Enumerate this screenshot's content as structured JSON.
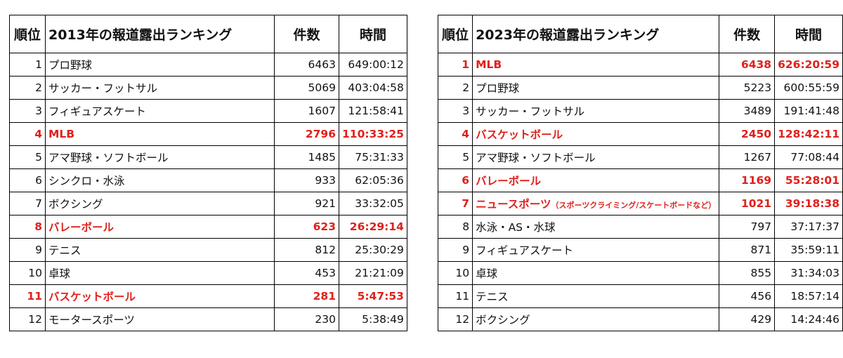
{
  "headers": {
    "rank": "順位",
    "count": "件数",
    "time": "時間"
  },
  "tables": [
    {
      "title": "2013年の報道露出ランキング",
      "rows": [
        {
          "rank": "1",
          "name": "プロ野球",
          "count": "6463",
          "time": "649:00:12",
          "highlight": false
        },
        {
          "rank": "2",
          "name": "サッカー・フットサル",
          "count": "5069",
          "time": "403:04:58",
          "highlight": false
        },
        {
          "rank": "3",
          "name": "フィギュアスケート",
          "count": "1607",
          "time": "121:58:41",
          "highlight": false
        },
        {
          "rank": "4",
          "name": "MLB",
          "count": "2796",
          "time": "110:33:25",
          "highlight": true
        },
        {
          "rank": "5",
          "name": "アマ野球・ソフトボール",
          "count": "1485",
          "time": "75:31:33",
          "highlight": false
        },
        {
          "rank": "6",
          "name": "シンクロ・水泳",
          "count": "933",
          "time": "62:05:36",
          "highlight": false
        },
        {
          "rank": "7",
          "name": "ボクシング",
          "count": "921",
          "time": "33:32:05",
          "highlight": false
        },
        {
          "rank": "8",
          "name": "バレーボール",
          "count": "623",
          "time": "26:29:14",
          "highlight": true
        },
        {
          "rank": "9",
          "name": "テニス",
          "count": "812",
          "time": "25:30:29",
          "highlight": false
        },
        {
          "rank": "10",
          "name": "卓球",
          "count": "453",
          "time": "21:21:09",
          "highlight": false
        },
        {
          "rank": "11",
          "name": "バスケットボール",
          "count": "281",
          "time": "5:47:53",
          "highlight": true
        },
        {
          "rank": "12",
          "name": "モータースポーツ",
          "count": "230",
          "time": "5:38:49",
          "highlight": false
        }
      ]
    },
    {
      "title": "2023年の報道露出ランキング",
      "rows": [
        {
          "rank": "1",
          "name": "MLB",
          "count": "6438",
          "time": "626:20:59",
          "highlight": true
        },
        {
          "rank": "2",
          "name": "プロ野球",
          "count": "5223",
          "time": "600:55:59",
          "highlight": false
        },
        {
          "rank": "3",
          "name": "サッカー・フットサル",
          "count": "3489",
          "time": "191:41:48",
          "highlight": false
        },
        {
          "rank": "4",
          "name": "バスケットボール",
          "count": "2450",
          "time": "128:42:11",
          "highlight": true
        },
        {
          "rank": "5",
          "name": "アマ野球・ソフトボール",
          "count": "1267",
          "time": "77:08:44",
          "highlight": false
        },
        {
          "rank": "6",
          "name": "バレーボール",
          "count": "1169",
          "time": "55:28:01",
          "highlight": true
        },
        {
          "rank": "7",
          "name": "ニュースポーツ",
          "note": "（スポーツクライミング/スケートボードなど）",
          "count": "1021",
          "time": "39:18:38",
          "highlight": true
        },
        {
          "rank": "8",
          "name": "水泳・AS・水球",
          "count": "797",
          "time": "37:17:37",
          "highlight": false
        },
        {
          "rank": "9",
          "name": "フィギュアスケート",
          "count": "871",
          "time": "35:59:11",
          "highlight": false
        },
        {
          "rank": "10",
          "name": "卓球",
          "count": "855",
          "time": "31:34:03",
          "highlight": false
        },
        {
          "rank": "11",
          "name": "テニス",
          "count": "456",
          "time": "18:57:14",
          "highlight": false
        },
        {
          "rank": "12",
          "name": "ボクシング",
          "count": "429",
          "time": "14:24:46",
          "highlight": false
        }
      ]
    }
  ],
  "colors": {
    "highlight": "#e0201b",
    "text": "#111111",
    "border": "#000000"
  }
}
